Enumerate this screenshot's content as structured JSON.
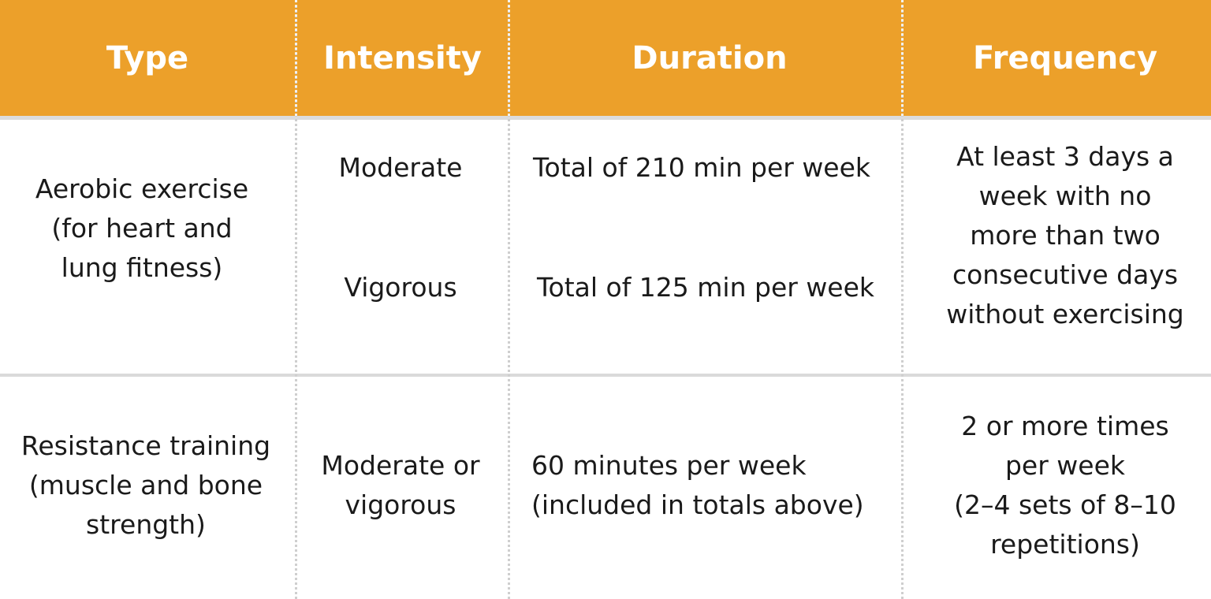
{
  "header": {
    "type_label": "Type",
    "intensity_label": "Intensity",
    "duration_label": "Duration",
    "frequency_label": "Frequency"
  },
  "rows": [
    {
      "type": "Aerobic exercise\n(for heart and\nlung fitness)",
      "intensities": [
        "Moderate",
        "Vigorous"
      ],
      "durations": [
        "Total of 210 min per week",
        "Total of 125 min per week"
      ],
      "frequency": "At least 3 days a\nweek with no\nmore than two\nconsecutive days\nwithout exercising"
    },
    {
      "type": "Resistance training\n(muscle and bone\nstrength)",
      "intensity": "Moderate or\nvigorous",
      "duration": "60 minutes per week\n(included in totals above)",
      "frequency": "2 or more times\nper week\n(2–4 sets of 8–10\nrepetitions)"
    }
  ],
  "colors": {
    "header_background": "#eca02a",
    "header_text": "#ffffff",
    "body_text": "#1a1a1a",
    "divider": "#dadada"
  }
}
